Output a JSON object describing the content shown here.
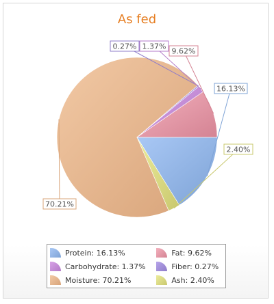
{
  "chart_data": {
    "type": "pie",
    "title": "As fed",
    "slices": [
      {
        "label": "Protein",
        "value": 16.13,
        "value_label": "16.13%",
        "legend_text": "Protein: 16.13%",
        "color": "#a9c8f5",
        "dark": "#7ea3d6"
      },
      {
        "label": "Ash",
        "value": 2.4,
        "value_label": "2.40%",
        "legend_text": "Ash: 2.40%",
        "color": "#ecec9c",
        "dark": "#c9c86e"
      },
      {
        "label": "Moisture",
        "value": 70.21,
        "value_label": "70.21%",
        "legend_text": "Moisture: 70.21%",
        "color": "#f2c9a5",
        "dark": "#d8a47a"
      },
      {
        "label": "Fiber",
        "value": 0.27,
        "value_label": "0.27%",
        "legend_text": "Fiber: 0.27%",
        "color": "#b6a4ea",
        "dark": "#8f7cc9"
      },
      {
        "label": "Carbohydrate",
        "value": 1.37,
        "value_label": "1.37%",
        "legend_text": "Carbohydrate: 1.37%",
        "color": "#d7a2e6",
        "dark": "#b37ac8"
      },
      {
        "label": "Fat",
        "value": 9.62,
        "value_label": "9.62%",
        "legend_text": "Fat: 9.62%",
        "color": "#f3b0bd",
        "dark": "#d48393"
      }
    ],
    "legend_order": [
      "Protein",
      "Fat",
      "Carbohydrate",
      "Fiber",
      "Moisture",
      "Ash"
    ],
    "legend_placement": "bottom"
  }
}
